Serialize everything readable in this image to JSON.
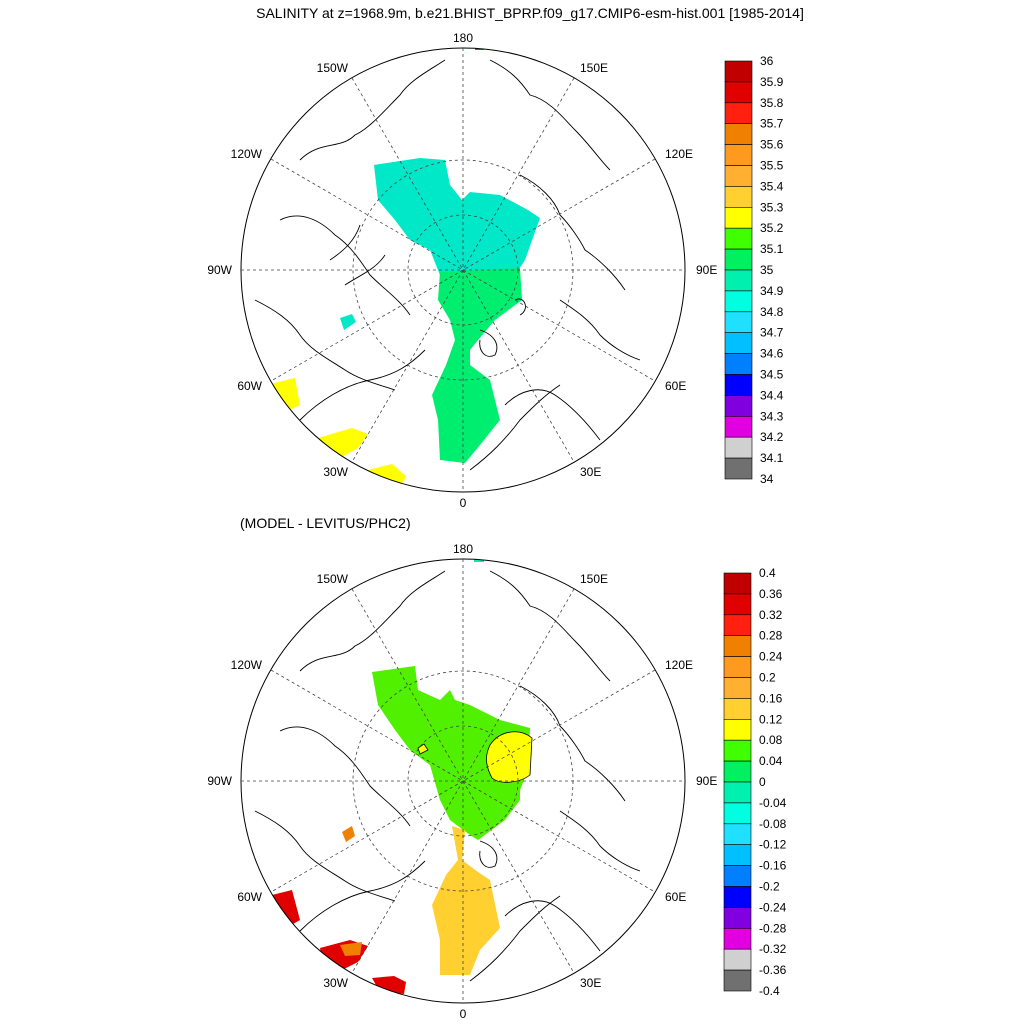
{
  "title": "SALINITY at z=1968.9m, b.e21.BHIST_BPRP.f09_g17.CMIP6-esm-hist.001 [1985-2014]",
  "subtitle": "(MODEL - LEVITUS/PHC2)",
  "longitude_labels": [
    "180",
    "150E",
    "120E",
    "90E",
    "60E",
    "30E",
    "0",
    "30W",
    "60W",
    "90W",
    "120W",
    "150W"
  ],
  "top_colorbar": {
    "labels": [
      "36",
      "35.9",
      "35.8",
      "35.7",
      "35.6",
      "35.5",
      "35.4",
      "35.3",
      "35.2",
      "35.1",
      "35",
      "34.9",
      "34.8",
      "34.7",
      "34.6",
      "34.5",
      "34.4",
      "34.3",
      "34.2",
      "34.1",
      "34"
    ],
    "colors": [
      "#C00000",
      "#E00000",
      "#FF2010",
      "#F08000",
      "#FF9A20",
      "#FFB030",
      "#FFD030",
      "#FFFF00",
      "#40FF00",
      "#00F060",
      "#00F0B0",
      "#00FFE0",
      "#20E0FF",
      "#00C0FF",
      "#0080FF",
      "#0000FF",
      "#8000E0",
      "#E000E0",
      "#D0D0D0",
      "#707070"
    ]
  },
  "bottom_colorbar": {
    "labels": [
      "0.4",
      "0.36",
      "0.32",
      "0.28",
      "0.24",
      "0.2",
      "0.16",
      "0.12",
      "0.08",
      "0.04",
      "0",
      "-0.04",
      "-0.08",
      "-0.12",
      "-0.16",
      "-0.2",
      "-0.24",
      "-0.28",
      "-0.32",
      "-0.36",
      "-0.4"
    ],
    "colors": [
      "#C00000",
      "#E00000",
      "#FF2010",
      "#F08000",
      "#FF9A20",
      "#FFB030",
      "#FFD030",
      "#FFFF00",
      "#40FF00",
      "#00F060",
      "#00F0B0",
      "#00FFE0",
      "#20E0FF",
      "#00C0FF",
      "#0080FF",
      "#0000FF",
      "#8000E0",
      "#E000E0",
      "#D0D0D0",
      "#707070"
    ]
  },
  "fields": {
    "top_cyan": "#00E8C8",
    "top_green": "#00EE70",
    "top_yellow": "#FFFF00",
    "top_blue": "#0080FF",
    "bot_green": "#50F000",
    "bot_yellow": "#FFFF00",
    "bot_gold": "#FFD030",
    "bot_orange": "#F08000",
    "bot_red": "#E00000",
    "bot_cyan": "#00F0B0"
  }
}
